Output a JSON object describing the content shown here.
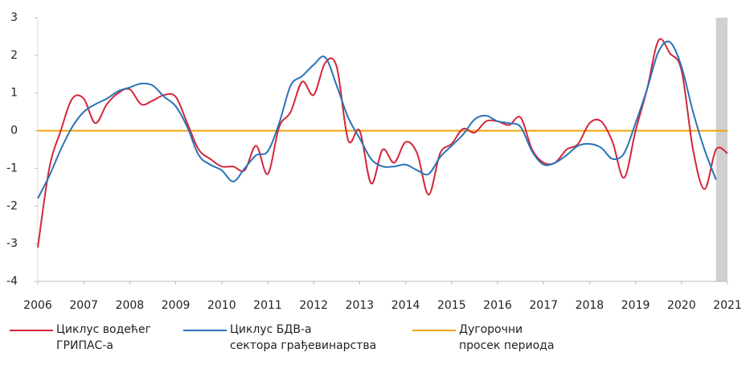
{
  "chart_data": {
    "type": "line",
    "x": [
      2006,
      2006.25,
      2006.5,
      2006.75,
      2007,
      2007.25,
      2007.5,
      2007.75,
      2008,
      2008.25,
      2008.5,
      2008.75,
      2009,
      2009.25,
      2009.5,
      2009.75,
      2010,
      2010.25,
      2010.5,
      2010.75,
      2011,
      2011.25,
      2011.5,
      2011.75,
      2012,
      2012.25,
      2012.5,
      2012.75,
      2013,
      2013.25,
      2013.5,
      2013.75,
      2014,
      2014.25,
      2014.5,
      2014.75,
      2015,
      2015.25,
      2015.5,
      2015.75,
      2016,
      2016.25,
      2016.5,
      2016.75,
      2017,
      2017.25,
      2017.5,
      2017.75,
      2018,
      2018.25,
      2018.5,
      2018.75,
      2019,
      2019.25,
      2019.5,
      2019.75,
      2020,
      2020.25,
      2020.5,
      2020.75,
      2021
    ],
    "series": [
      {
        "name": "Циклус водећег\nГРИПАС-а",
        "color": "#d3263a",
        "values": [
          -3.1,
          -1.0,
          0.0,
          0.85,
          0.85,
          0.2,
          0.7,
          1.0,
          1.1,
          0.7,
          0.8,
          0.95,
          0.9,
          0.2,
          -0.5,
          -0.75,
          -0.95,
          -0.95,
          -1.05,
          -0.4,
          -1.15,
          0.1,
          0.5,
          1.3,
          0.95,
          1.8,
          1.7,
          -0.25,
          0.0,
          -1.4,
          -0.5,
          -0.85,
          -0.3,
          -0.6,
          -1.7,
          -0.6,
          -0.35,
          0.05,
          -0.05,
          0.25,
          0.25,
          0.15,
          0.35,
          -0.5,
          -0.85,
          -0.85,
          -0.5,
          -0.35,
          0.2,
          0.25,
          -0.3,
          -1.25,
          0.0,
          1.1,
          2.4,
          2.05,
          1.6,
          -0.5,
          -1.55,
          -0.5,
          -0.6
        ]
      },
      {
        "name": "Циклус БДВ-а\nсектора грађевинарства",
        "color": "#2a73b8",
        "values": [
          -1.8,
          -1.2,
          -0.5,
          0.1,
          0.5,
          0.7,
          0.85,
          1.05,
          1.15,
          1.25,
          1.2,
          0.9,
          0.65,
          0.1,
          -0.65,
          -0.9,
          -1.05,
          -1.35,
          -1.0,
          -0.65,
          -0.55,
          0.2,
          1.2,
          1.45,
          1.75,
          1.95,
          1.2,
          0.35,
          -0.2,
          -0.75,
          -0.95,
          -0.95,
          -0.9,
          -1.05,
          -1.15,
          -0.7,
          -0.4,
          -0.1,
          0.3,
          0.4,
          0.25,
          0.2,
          0.1,
          -0.55,
          -0.9,
          -0.85,
          -0.65,
          -0.4,
          -0.35,
          -0.45,
          -0.75,
          -0.6,
          0.2,
          1.1,
          2.1,
          2.35,
          1.7,
          0.5,
          -0.5,
          -1.3,
          null
        ]
      },
      {
        "name": "Дугорочни\nпросек периода",
        "color": "#f0a30a",
        "values": [
          0,
          0,
          0,
          0,
          0,
          0,
          0,
          0,
          0,
          0,
          0,
          0,
          0,
          0,
          0,
          0,
          0,
          0,
          0,
          0,
          0,
          0,
          0,
          0,
          0,
          0,
          0,
          0,
          0,
          0,
          0,
          0,
          0,
          0,
          0,
          0,
          0,
          0,
          0,
          0,
          0,
          0,
          0,
          0,
          0,
          0,
          0,
          0,
          0,
          0,
          0,
          0,
          0,
          0,
          0,
          0,
          0,
          0,
          0,
          0,
          0
        ]
      }
    ],
    "xlim": [
      2006,
      2021
    ],
    "xticks": [
      2006,
      2007,
      2008,
      2009,
      2010,
      2011,
      2012,
      2013,
      2014,
      2015,
      2016,
      2017,
      2018,
      2019,
      2020,
      2021
    ],
    "ylim": [
      -4,
      3
    ],
    "yticks": [
      -4,
      -3,
      -2,
      -1,
      0,
      1,
      2,
      3
    ],
    "shade": [
      2020.75,
      2021
    ],
    "shade_color": "#d0d0d0",
    "grid": false
  }
}
